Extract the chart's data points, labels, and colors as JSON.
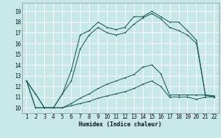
{
  "title": "",
  "xlabel": "Humidex (Indice chaleur)",
  "bg_color": "#c8e8e8",
  "grid_color": "#ffffff",
  "line_color": "#1a5c5c",
  "xlim": [
    0.5,
    22.5
  ],
  "ylim": [
    9.5,
    19.8
  ],
  "xticks": [
    1,
    2,
    3,
    4,
    5,
    6,
    7,
    8,
    9,
    10,
    11,
    12,
    13,
    14,
    15,
    16,
    17,
    18,
    19,
    20,
    21,
    22
  ],
  "yticks": [
    10,
    11,
    12,
    13,
    14,
    15,
    16,
    17,
    18,
    19
  ],
  "line1_x": [
    1,
    2,
    3,
    4,
    5,
    6,
    7,
    8,
    9,
    10,
    11,
    12,
    13,
    14,
    15,
    16,
    17,
    18,
    19,
    20,
    21,
    22
  ],
  "line1_y": [
    12.5,
    11.3,
    10.0,
    10.0,
    11.3,
    13.5,
    16.8,
    17.2,
    18.0,
    17.5,
    17.3,
    17.5,
    18.5,
    18.5,
    19.0,
    18.5,
    18.0,
    18.0,
    17.2,
    16.3,
    11.2,
    11.1
  ],
  "line2_x": [
    1,
    2,
    3,
    4,
    5,
    6,
    7,
    8,
    9,
    10,
    11,
    12,
    13,
    14,
    15,
    16,
    17,
    18,
    19,
    20,
    21,
    22
  ],
  "line2_y": [
    12.5,
    11.3,
    10.0,
    10.0,
    11.3,
    12.5,
    15.5,
    16.8,
    17.5,
    17.0,
    16.8,
    17.0,
    17.8,
    18.4,
    18.8,
    18.3,
    17.5,
    17.2,
    16.8,
    16.0,
    11.2,
    11.0
  ],
  "line3_x": [
    1,
    2,
    3,
    4,
    5,
    6,
    7,
    8,
    9,
    10,
    11,
    12,
    13,
    14,
    15,
    16,
    17,
    18,
    19,
    20,
    21,
    22
  ],
  "line3_y": [
    12.5,
    10.0,
    10.0,
    10.0,
    10.0,
    10.4,
    10.9,
    11.3,
    11.8,
    12.2,
    12.5,
    12.8,
    13.1,
    13.8,
    14.0,
    13.2,
    11.2,
    11.2,
    11.2,
    11.2,
    11.2,
    11.1
  ],
  "line4_x": [
    1,
    2,
    3,
    4,
    5,
    6,
    7,
    8,
    9,
    10,
    11,
    12,
    13,
    14,
    15,
    16,
    17,
    18,
    19,
    20,
    21,
    22
  ],
  "line4_y": [
    12.5,
    10.0,
    10.0,
    10.0,
    10.0,
    10.2,
    10.4,
    10.6,
    10.9,
    11.1,
    11.3,
    11.5,
    11.8,
    12.2,
    12.5,
    12.0,
    11.0,
    11.0,
    11.0,
    10.8,
    11.0,
    11.0
  ]
}
